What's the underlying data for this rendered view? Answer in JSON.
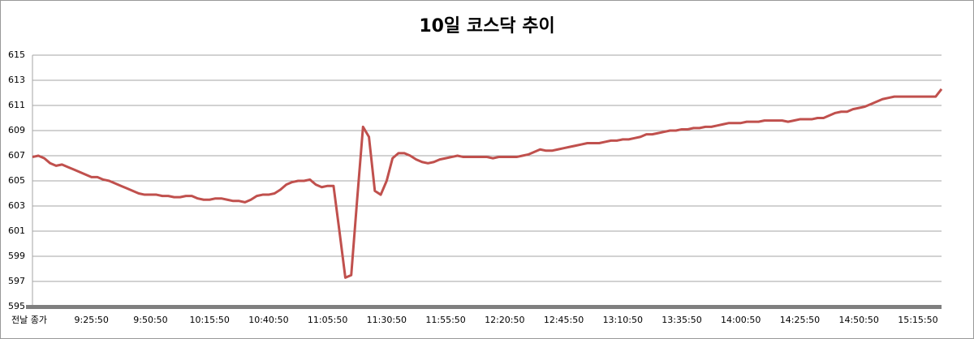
{
  "chart_data": {
    "type": "line",
    "title": "10일 코스닥 추이",
    "categories": [
      "전날 종가",
      null,
      null,
      null,
      null,
      null,
      null,
      null,
      null,
      null,
      "9:25:50",
      null,
      null,
      null,
      null,
      null,
      null,
      null,
      null,
      null,
      "9:50:50",
      null,
      null,
      null,
      null,
      null,
      null,
      null,
      null,
      null,
      "10:15:50",
      null,
      null,
      null,
      null,
      null,
      null,
      null,
      null,
      null,
      "10:40:50",
      null,
      null,
      null,
      null,
      null,
      null,
      null,
      null,
      null,
      "11:05:50",
      null,
      null,
      null,
      null,
      null,
      null,
      null,
      null,
      null,
      "11:30:50",
      null,
      null,
      null,
      null,
      null,
      null,
      null,
      null,
      null,
      "11:55:50",
      null,
      null,
      null,
      null,
      null,
      null,
      null,
      null,
      null,
      "12:20:50",
      null,
      null,
      null,
      null,
      null,
      null,
      null,
      null,
      null,
      "12:45:50",
      null,
      null,
      null,
      null,
      null,
      null,
      null,
      null,
      null,
      "13:10:50",
      null,
      null,
      null,
      null,
      null,
      null,
      null,
      null,
      null,
      "13:35:50",
      null,
      null,
      null,
      null,
      null,
      null,
      null,
      null,
      null,
      "14:00:50",
      null,
      null,
      null,
      null,
      null,
      null,
      null,
      null,
      null,
      "14:25:50",
      null,
      null,
      null,
      null,
      null,
      null,
      null,
      null,
      null,
      "14:50:50",
      null,
      null,
      null,
      null,
      null,
      null,
      null,
      null,
      null,
      "15:15:50",
      null,
      null,
      null,
      null
    ],
    "series": [
      {
        "name": "코스닥",
        "color": "#c0504d",
        "values": [
          606.9,
          607.0,
          606.8,
          606.4,
          606.2,
          606.3,
          606.1,
          605.9,
          605.7,
          605.5,
          605.3,
          605.3,
          605.1,
          605.0,
          604.8,
          604.6,
          604.4,
          604.2,
          604.0,
          603.9,
          603.9,
          603.9,
          603.8,
          603.8,
          603.7,
          603.7,
          603.8,
          603.8,
          603.6,
          603.5,
          603.5,
          603.6,
          603.6,
          603.5,
          603.4,
          603.4,
          603.3,
          603.5,
          603.8,
          603.9,
          603.9,
          604.0,
          604.3,
          604.7,
          604.9,
          605.0,
          605.0,
          605.1,
          604.7,
          604.5,
          604.6,
          604.6,
          601.0,
          597.3,
          597.5,
          603.5,
          609.3,
          608.5,
          604.2,
          603.9,
          605.0,
          606.8,
          607.2,
          607.2,
          607.0,
          606.7,
          606.5,
          606.4,
          606.5,
          606.7,
          606.8,
          606.9,
          607.0,
          606.9,
          606.9,
          606.9,
          606.9,
          606.9,
          606.8,
          606.9,
          606.9,
          606.9,
          606.9,
          607.0,
          607.1,
          607.3,
          607.5,
          607.4,
          607.4,
          607.5,
          607.6,
          607.7,
          607.8,
          607.9,
          608.0,
          608.0,
          608.0,
          608.1,
          608.2,
          608.2,
          608.3,
          608.3,
          608.4,
          608.5,
          608.7,
          608.7,
          608.8,
          608.9,
          609.0,
          609.0,
          609.1,
          609.1,
          609.2,
          609.2,
          609.3,
          609.3,
          609.4,
          609.5,
          609.6,
          609.6,
          609.6,
          609.7,
          609.7,
          609.7,
          609.8,
          609.8,
          609.8,
          609.8,
          609.7,
          609.8,
          609.9,
          609.9,
          609.9,
          610.0,
          610.0,
          610.2,
          610.4,
          610.5,
          610.5,
          610.7,
          610.8,
          610.9,
          611.1,
          611.3,
          611.5,
          611.6,
          611.7,
          611.7,
          611.7,
          611.7,
          611.7,
          611.7,
          611.7,
          611.7,
          612.3
        ]
      }
    ],
    "ylim": [
      595,
      615
    ],
    "yticks": [
      595,
      597,
      599,
      601,
      603,
      605,
      607,
      609,
      611,
      613,
      615
    ],
    "grid": true
  }
}
